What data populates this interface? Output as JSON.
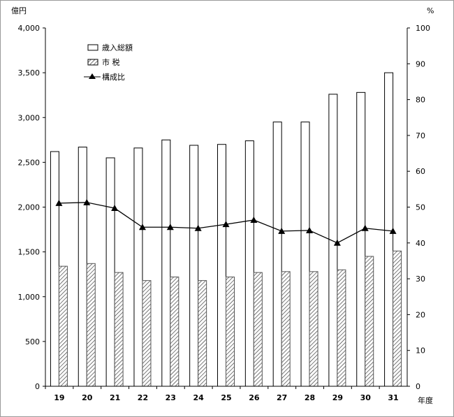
{
  "chart_data": {
    "type": "bar",
    "title": "",
    "xlabel": "年度",
    "ylabel": "億円",
    "y2label": "%",
    "categories": [
      "19",
      "20",
      "21",
      "22",
      "23",
      "24",
      "25",
      "26",
      "27",
      "28",
      "29",
      "30",
      "31"
    ],
    "ylim": [
      0,
      4000
    ],
    "y2lim": [
      0,
      100
    ],
    "yticks": [
      "0",
      "500",
      "1,000",
      "1,500",
      "2,000",
      "2,500",
      "3,000",
      "3,500",
      "4,000"
    ],
    "y2ticks": [
      "0",
      "10",
      "20",
      "30",
      "40",
      "50",
      "60",
      "70",
      "80",
      "90",
      "100"
    ],
    "legend_position": "top-left",
    "series": [
      {
        "name": "歳入総額",
        "type": "bar",
        "axis": "left",
        "values": [
          2620,
          2670,
          2550,
          2660,
          2750,
          2690,
          2700,
          2740,
          2950,
          2950,
          3260,
          3280,
          3500
        ]
      },
      {
        "name": "市 税",
        "type": "bar",
        "axis": "left",
        "pattern": "hatched",
        "values": [
          1340,
          1370,
          1270,
          1180,
          1220,
          1180,
          1220,
          1270,
          1280,
          1280,
          1300,
          1450,
          1510
        ]
      },
      {
        "name": "構成比",
        "type": "line",
        "axis": "right",
        "marker": "triangle",
        "values": [
          51.1,
          51.3,
          49.7,
          44.4,
          44.4,
          44.1,
          45.2,
          46.4,
          43.3,
          43.5,
          40.0,
          44.1,
          43.3
        ]
      }
    ]
  }
}
